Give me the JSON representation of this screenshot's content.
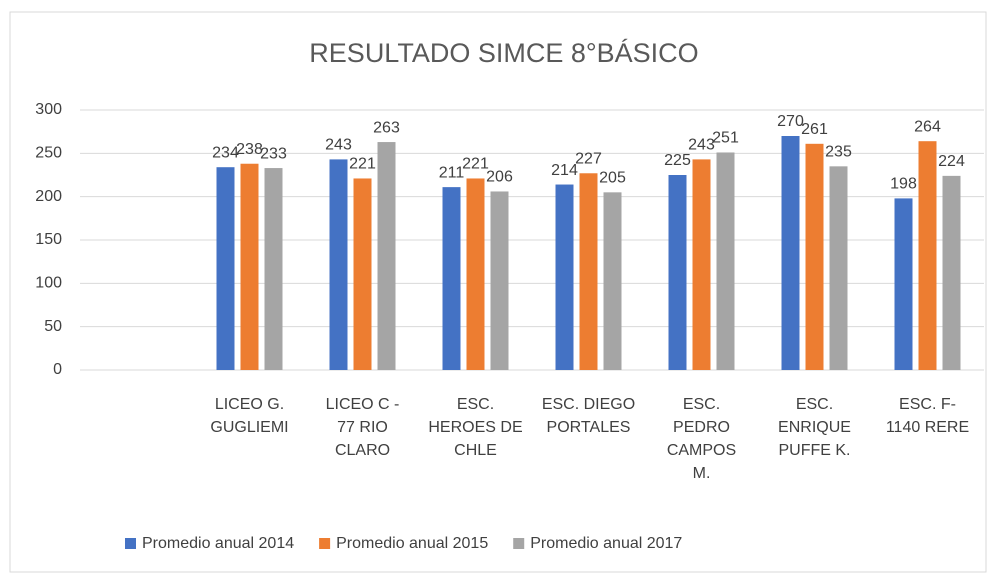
{
  "chart_data": {
    "type": "bar",
    "title": "RESULTADO SIMCE 8°BÁSICO",
    "categories": [
      null,
      "LICEO G.\nGUGLIEMI",
      "LICEO C -\n77 RIO\nCLARO",
      "ESC.\nHEROES DE\nCHLE",
      "ESC. DIEGO\nPORTALES",
      "ESC.\nPEDRO\nCAMPOS\nM.",
      "ESC.\nENRIQUE\nPUFFE K.",
      "ESC. F-\n1140  RERE"
    ],
    "series": [
      {
        "name": "Promedio anual 2014",
        "color": "#4472c4",
        "values": [
          null,
          234,
          243,
          211,
          214,
          225,
          270,
          198
        ]
      },
      {
        "name": "Promedio anual 2015",
        "color": "#ed7d31",
        "values": [
          null,
          238,
          221,
          221,
          227,
          243,
          261,
          264
        ]
      },
      {
        "name": "Promedio anual 2017",
        "color": "#a5a5a5",
        "values": [
          null,
          233,
          263,
          206,
          205,
          251,
          235,
          224
        ]
      }
    ],
    "ylim": [
      0,
      300
    ],
    "yticks": [
      0,
      50,
      100,
      150,
      200,
      250,
      300
    ],
    "grid": true,
    "legend": "bottom"
  }
}
